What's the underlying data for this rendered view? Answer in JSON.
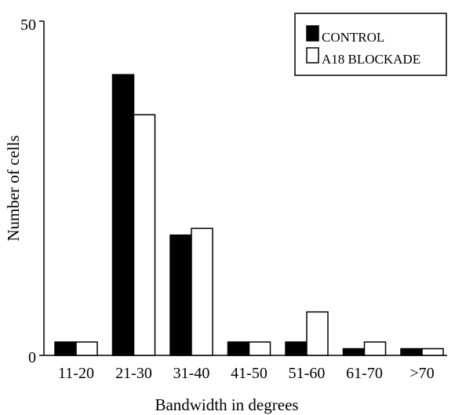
{
  "chart_data": {
    "type": "bar",
    "categories": [
      "11-20",
      "21-30",
      "31-40",
      "41-50",
      "51-60",
      "61-70",
      ">70"
    ],
    "series": [
      {
        "name": "CONTROL",
        "values": [
          2,
          42,
          18,
          2,
          2,
          1,
          1
        ],
        "color": "#000000"
      },
      {
        "name": "A18 BLOCKADE",
        "values": [
          2,
          36,
          19,
          2,
          6.5,
          2,
          1
        ],
        "color": "#ffffff"
      }
    ],
    "xlabel": "Bandwidth in degrees",
    "ylabel": "Number of cells",
    "ylim": [
      0,
      50
    ],
    "y_tick_labels": [
      "0",
      "50"
    ],
    "grid": false,
    "legend_position": "top-right"
  }
}
